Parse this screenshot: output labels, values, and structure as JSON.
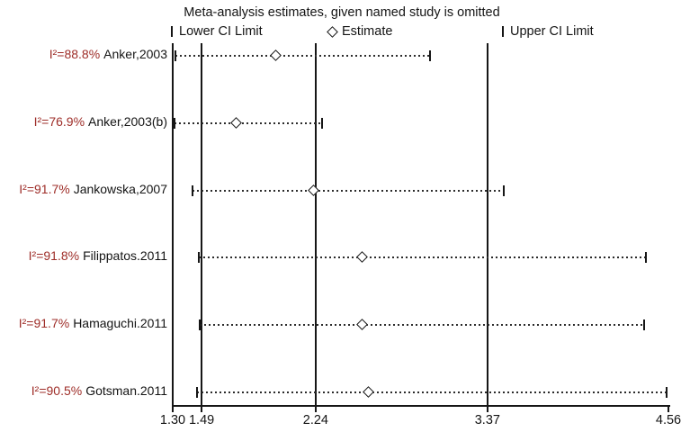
{
  "title": "Meta-analysis estimates, given named study is omitted",
  "legend": {
    "lower_label": "Lower CI Limit",
    "estimate_label": "Estimate",
    "upper_label": "Upper CI Limit"
  },
  "colors": {
    "i2_label": "#9e2d28",
    "line": "#161616",
    "text": "#141414",
    "background": "#ffffff"
  },
  "chart_data": {
    "type": "forest-sensitivity",
    "title": "Meta-analysis estimates, given named study is omitted",
    "axis": {
      "min": 1.3,
      "max": 4.56,
      "ticks": [
        1.3,
        1.49,
        2.24,
        3.37,
        4.56
      ],
      "tick_labels": [
        "1.30",
        "1.49",
        "2.24",
        "3.37",
        "4.56"
      ]
    },
    "reference_vlines": [
      1.3,
      1.49,
      2.24,
      3.37
    ],
    "grid": false,
    "legend_position": "top",
    "studies": [
      {
        "i2": "I²=88.8%",
        "name": "Anker,2003",
        "lower": 1.32,
        "estimate": 1.98,
        "upper": 2.99
      },
      {
        "i2": "I²=76.9%",
        "name": "Anker,2003(b)",
        "lower": 1.31,
        "estimate": 1.72,
        "upper": 2.28
      },
      {
        "i2": "I²=91.7%",
        "name": "Jankowska,2007",
        "lower": 1.43,
        "estimate": 2.23,
        "upper": 3.48
      },
      {
        "i2": "I²=91.8%",
        "name": "Filippatos.2011",
        "lower": 1.47,
        "estimate": 2.55,
        "upper": 4.41
      },
      {
        "i2": "I²=91.7%",
        "name": "Hamaguchi.2011",
        "lower": 1.48,
        "estimate": 2.55,
        "upper": 4.4
      },
      {
        "i2": "I²=90.5%",
        "name": "Gotsman.2011",
        "lower": 1.46,
        "estimate": 2.59,
        "upper": 4.55
      }
    ]
  }
}
